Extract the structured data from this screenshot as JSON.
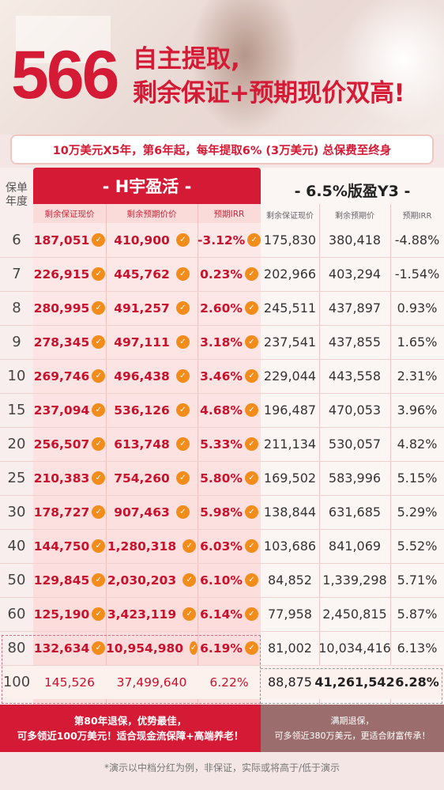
{
  "hero": {
    "number": "566",
    "line1": "自主提取,",
    "line2": "剩余保证+预期现价双高!"
  },
  "subtitle": "10万美元X5年，第6年起，每年提取6% (3万美元) 总保费至终身",
  "table": {
    "year_header_line1": "保单",
    "year_header_line2": "年度",
    "ours_title": "- H宇盈活 -",
    "theirs_title": "- 6.5%版盈Y3 -",
    "ours_subheaders": [
      "剩余保证现价",
      "剩余预期价价",
      "预期IRR"
    ],
    "theirs_subheaders": [
      "剩余保证现价",
      "剩余预期价",
      "预期IRR"
    ],
    "rows": [
      {
        "year": "6",
        "o1": "187,051",
        "o2": "410,900",
        "o3": "-3.12%",
        "t1": "175,830",
        "t2": "380,418",
        "t3": "-4.88%"
      },
      {
        "year": "7",
        "o1": "226,915",
        "o2": "445,762",
        "o3": "0.23%",
        "t1": "202,966",
        "t2": "403,294",
        "t3": "-1.54%"
      },
      {
        "year": "8",
        "o1": "280,995",
        "o2": "491,257",
        "o3": "2.60%",
        "t1": "245,511",
        "t2": "437,897",
        "t3": "0.93%"
      },
      {
        "year": "9",
        "o1": "278,345",
        "o2": "497,111",
        "o3": "3.18%",
        "t1": "237,541",
        "t2": "437,855",
        "t3": "1.65%"
      },
      {
        "year": "10",
        "o1": "269,746",
        "o2": "496,438",
        "o3": "3.46%",
        "t1": "229,044",
        "t2": "443,558",
        "t3": "2.31%"
      },
      {
        "year": "15",
        "o1": "237,094",
        "o2": "536,126",
        "o3": "4.68%",
        "t1": "196,487",
        "t2": "470,053",
        "t3": "3.96%"
      },
      {
        "year": "20",
        "o1": "256,507",
        "o2": "613,748",
        "o3": "5.33%",
        "t1": "211,134",
        "t2": "530,057",
        "t3": "4.82%"
      },
      {
        "year": "25",
        "o1": "210,383",
        "o2": "754,260",
        "o3": "5.80%",
        "t1": "169,502",
        "t2": "583,996",
        "t3": "5.15%"
      },
      {
        "year": "30",
        "o1": "178,727",
        "o2": "907,463",
        "o3": "5.98%",
        "t1": "138,844",
        "t2": "631,685",
        "t3": "5.29%"
      },
      {
        "year": "40",
        "o1": "144,750",
        "o2": "1,280,318",
        "o3": "6.03%",
        "t1": "103,686",
        "t2": "841,069",
        "t3": "5.52%"
      },
      {
        "year": "50",
        "o1": "129,845",
        "o2": "2,030,203",
        "o3": "6.10%",
        "t1": "84,852",
        "t2": "1,339,298",
        "t3": "5.71%"
      },
      {
        "year": "60",
        "o1": "125,190",
        "o2": "3,423,119",
        "o3": "6.14%",
        "t1": "77,958",
        "t2": "2,450,815",
        "t3": "5.87%"
      },
      {
        "year": "80",
        "o1": "132,634",
        "o2": "10,954,980",
        "o3": "6.19%",
        "t1": "81,002",
        "t2": "10,034,416",
        "t3": "6.13%"
      },
      {
        "year": "100",
        "o1": "145,526",
        "o2": "37,499,640",
        "o3": "6.22%",
        "t1": "88,875",
        "t2": "41,261,542",
        "t3": "6.28%"
      }
    ]
  },
  "banner_left": {
    "line1": "第80年退保，优势最佳，",
    "line2": "可多领近100万美元！适合现金流保障+高端养老！"
  },
  "banner_right": {
    "line1": "满期退保，",
    "line2": "可多领近380万美元，更适合财富传承！"
  },
  "footnote": "*演示以中档分红为例，非保证，实际或将高于/低于演示",
  "icons": {
    "thumb": "thumbs-up-icon"
  },
  "colors": {
    "brand_red": "#d41a35",
    "thumb_orange": "#f28c1b"
  }
}
